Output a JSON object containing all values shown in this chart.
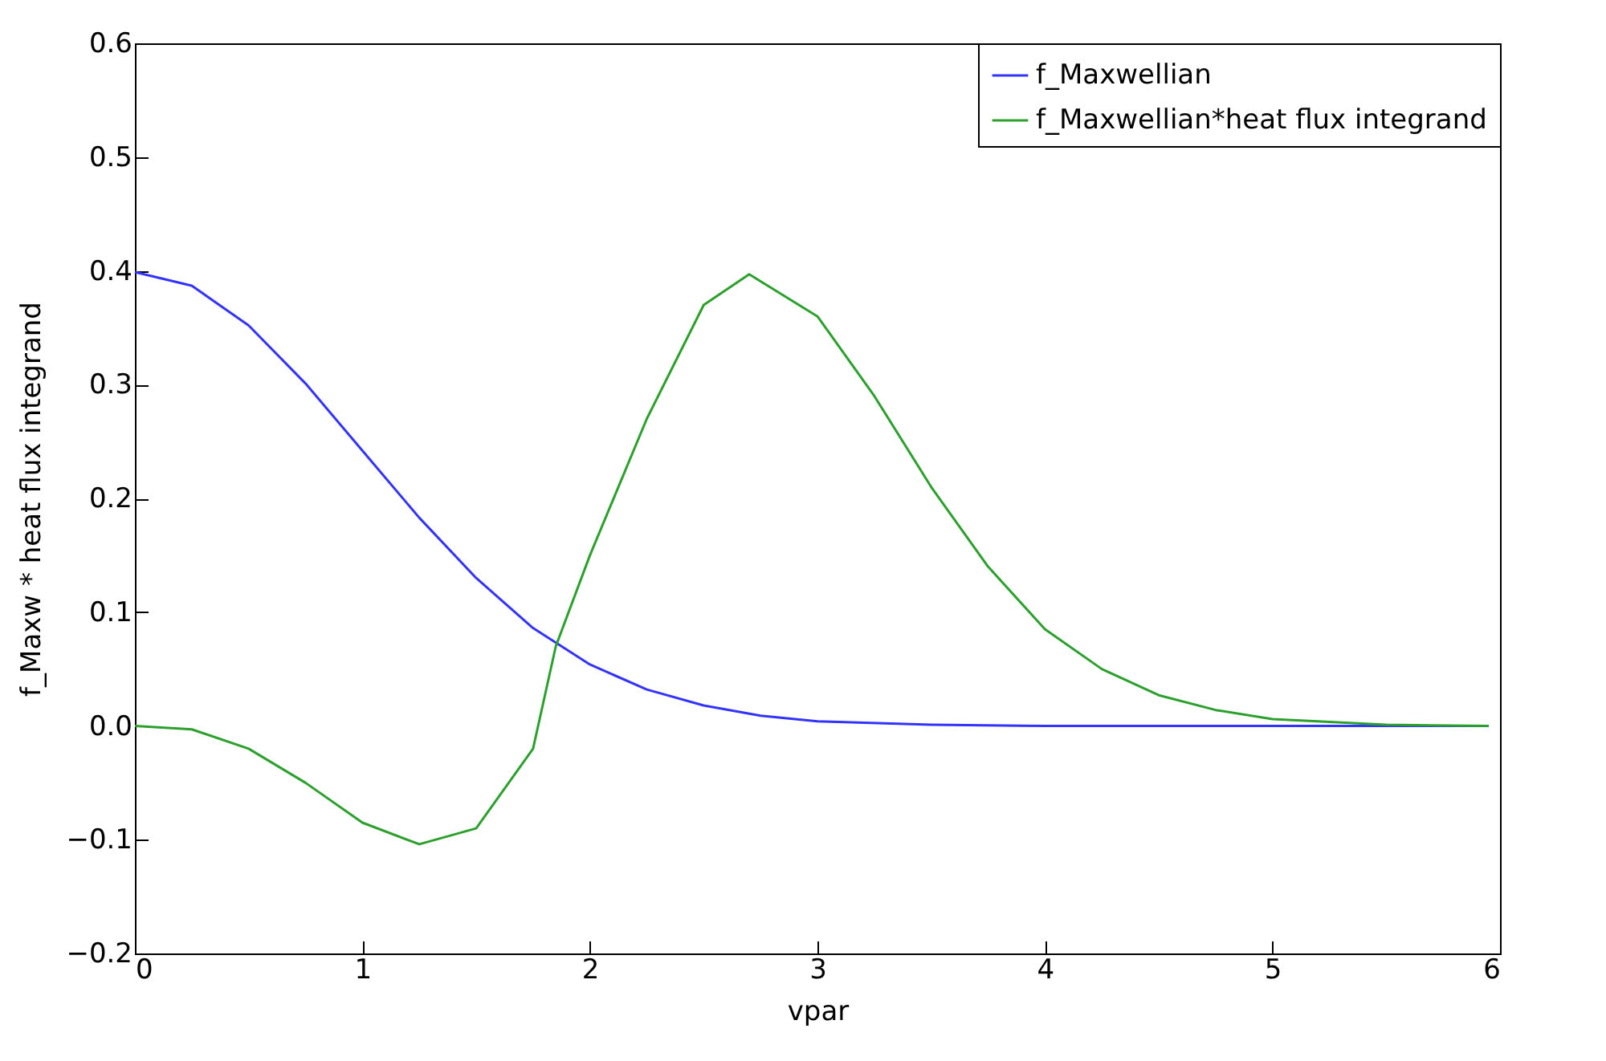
{
  "chart_data": {
    "type": "line",
    "xlabel": "vpar",
    "ylabel": "f_Maxw * heat flux integrand",
    "xlim": [
      0,
      6
    ],
    "xticks": [
      0,
      1,
      2,
      3,
      4,
      5,
      6
    ],
    "ylim": [
      -0.2,
      0.6
    ],
    "yticks": [
      {
        "value": -0.2,
        "label": "−0.2"
      },
      {
        "value": -0.1,
        "label": "−0.1"
      },
      {
        "value": 0,
        "label": "0.0"
      },
      {
        "value": 0.1,
        "label": "0.1"
      },
      {
        "value": 0.2,
        "label": "0.2"
      },
      {
        "value": 0.3,
        "label": "0.3"
      },
      {
        "value": 0.4,
        "label": "0.4"
      },
      {
        "value": 0.5,
        "label": "0.5"
      },
      {
        "value": 0.6,
        "label": "0.6"
      }
    ],
    "grid": false,
    "legend": "top right",
    "series": [
      {
        "name": "f_Maxwellian",
        "color": "#3333ff",
        "x": [
          0,
          0.25,
          0.5,
          0.75,
          1,
          1.25,
          1.5,
          1.75,
          2,
          2.25,
          2.5,
          2.75,
          3,
          3.5,
          4,
          5,
          5.95
        ],
        "values": [
          0.399,
          0.387,
          0.352,
          0.301,
          0.242,
          0.183,
          0.13,
          0.086,
          0.054,
          0.032,
          0.018,
          0.009,
          0.004,
          0.001,
          0,
          0,
          0
        ]
      },
      {
        "name": "f_Maxwellian*heat flux integrand",
        "color": "#2ca02c",
        "x": [
          0,
          0.25,
          0.5,
          0.75,
          1,
          1.25,
          1.5,
          1.75,
          1.85,
          2,
          2.25,
          2.5,
          2.7,
          3,
          3.25,
          3.5,
          3.75,
          4,
          4.25,
          4.5,
          4.75,
          5,
          5.5,
          5.95
        ],
        "values": [
          0,
          -0.003,
          -0.02,
          -0.05,
          -0.085,
          -0.104,
          -0.09,
          -0.02,
          0.07,
          0.15,
          0.27,
          0.37,
          0.397,
          0.36,
          0.29,
          0.21,
          0.14,
          0.085,
          0.05,
          0.027,
          0.014,
          0.006,
          0.001,
          0
        ]
      }
    ]
  }
}
